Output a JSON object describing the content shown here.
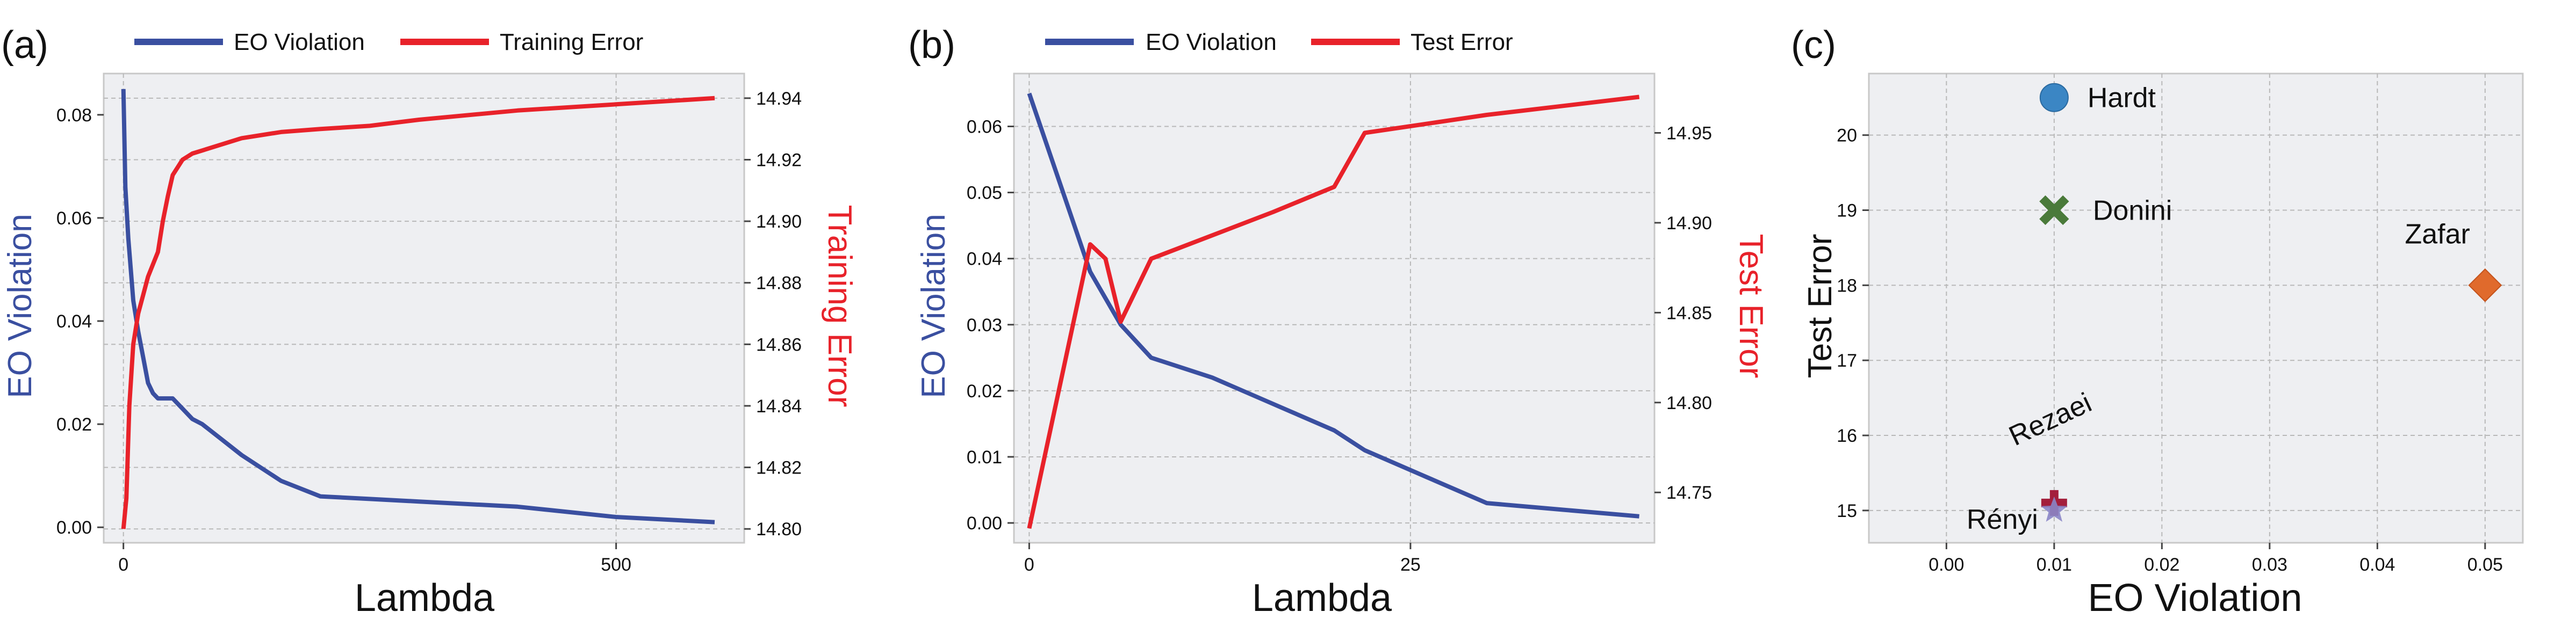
{
  "chart_data": [
    {
      "type": "line",
      "panel": "(a)",
      "xlabel": "Lambda",
      "y_left_label": "EO Violation",
      "y_right_label": "Training Error",
      "xlim": [
        -20,
        630
      ],
      "x_ticks": [
        0,
        500
      ],
      "y_left_lim": [
        -0.003,
        0.088
      ],
      "y_left_ticks": [
        0.0,
        0.02,
        0.04,
        0.06,
        0.08
      ],
      "y_right_lim": [
        14.7955,
        14.948
      ],
      "y_right_ticks": [
        14.8,
        14.82,
        14.84,
        14.86,
        14.88,
        14.9,
        14.92,
        14.94
      ],
      "legend_placement": "top",
      "grid": true,
      "series": [
        {
          "name": "EO Violation",
          "axis": "left",
          "color": "#3a4fa0",
          "x": [
            0,
            2,
            5,
            10,
            15,
            20,
            25,
            30,
            35,
            40,
            45,
            50,
            60,
            70,
            80,
            100,
            120,
            160,
            200,
            250,
            300,
            400,
            500,
            600
          ],
          "y": [
            0.085,
            0.066,
            0.056,
            0.044,
            0.038,
            0.033,
            0.028,
            0.026,
            0.025,
            0.025,
            0.025,
            0.025,
            0.023,
            0.021,
            0.02,
            0.017,
            0.014,
            0.009,
            0.006,
            0.0055,
            0.005,
            0.004,
            0.002,
            0.001
          ]
        },
        {
          "name": "Training Error",
          "axis": "right",
          "color": "#e8222a",
          "x": [
            0,
            3,
            6,
            10,
            15,
            20,
            25,
            30,
            35,
            40,
            45,
            50,
            60,
            70,
            80,
            100,
            120,
            160,
            200,
            250,
            300,
            400,
            500,
            600
          ],
          "y": [
            14.8,
            14.81,
            14.84,
            14.86,
            14.87,
            14.876,
            14.882,
            14.886,
            14.89,
            14.9,
            14.908,
            14.915,
            14.92,
            14.922,
            14.923,
            14.925,
            14.927,
            14.929,
            14.93,
            14.931,
            14.933,
            14.936,
            14.938,
            14.94
          ]
        }
      ]
    },
    {
      "type": "line",
      "panel": "(b)",
      "xlabel": "Lambda",
      "y_left_label": "EO Violation",
      "y_right_label": "Test Error",
      "xlim": [
        -1,
        41
      ],
      "x_ticks": [
        0,
        25
      ],
      "y_left_lim": [
        -0.003,
        0.068
      ],
      "y_left_ticks": [
        0.0,
        0.01,
        0.02,
        0.03,
        0.04,
        0.05,
        0.06
      ],
      "y_right_lim": [
        14.722,
        14.983
      ],
      "y_right_ticks": [
        14.75,
        14.8,
        14.85,
        14.9,
        14.95
      ],
      "legend_placement": "top",
      "grid": true,
      "series": [
        {
          "name": "EO Violation",
          "axis": "left",
          "color": "#3a4fa0",
          "x": [
            0,
            4,
            5,
            6,
            8,
            12,
            16,
            20,
            22,
            26,
            30,
            35,
            40
          ],
          "y": [
            0.065,
            0.038,
            0.034,
            0.03,
            0.025,
            0.022,
            0.018,
            0.014,
            0.011,
            0.007,
            0.003,
            0.002,
            0.001
          ]
        },
        {
          "name": "Test Error",
          "axis": "right",
          "color": "#e8222a",
          "x": [
            0,
            4,
            5,
            6,
            8,
            12,
            16,
            20,
            22,
            26,
            30,
            35,
            40
          ],
          "y": [
            14.73,
            14.888,
            14.88,
            14.845,
            14.88,
            14.893,
            14.906,
            14.92,
            14.95,
            14.955,
            14.96,
            14.965,
            14.97
          ]
        }
      ]
    },
    {
      "type": "scatter",
      "panel": "(c)",
      "xlabel": "EO Violation",
      "ylabel": "Test Error",
      "xlim": [
        -0.0072,
        0.0535
      ],
      "x_ticks": [
        "0.00",
        "0.01",
        "0.02",
        "0.03",
        "0.04",
        "0.05"
      ],
      "ylim": [
        14.57,
        20.82
      ],
      "y_ticks": [
        15,
        16,
        17,
        18,
        19,
        20
      ],
      "grid": true,
      "points": [
        {
          "name": "Hardt",
          "x": 0.01,
          "y": 20.5,
          "marker": "circle",
          "color": "#3b86c4"
        },
        {
          "name": "Donini",
          "x": 0.01,
          "y": 19.0,
          "marker": "x",
          "color": "#4a7a3a"
        },
        {
          "name": "Zafar",
          "x": 0.05,
          "y": 18.0,
          "marker": "diamond",
          "color": "#e06a2c"
        },
        {
          "name": "Rezaei",
          "x": 0.01,
          "y": 15.1,
          "marker": "plus",
          "color": "#a31f3c"
        },
        {
          "name": "Rényi",
          "x": 0.01,
          "y": 15.0,
          "marker": "star",
          "color": "#8a85c6"
        }
      ]
    }
  ]
}
